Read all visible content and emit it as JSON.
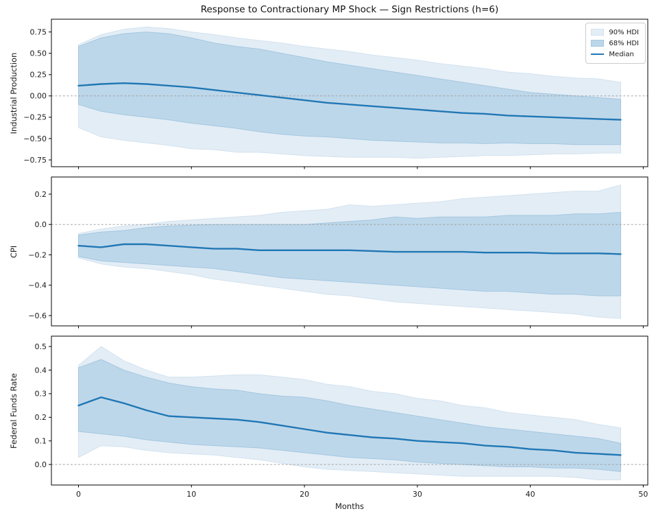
{
  "figure": {
    "title": "Response to Contractionary MP Shock — Sign Restrictions (h=6)",
    "xlabel": "Months",
    "xlim": [
      -2.4,
      50.4
    ],
    "xtick_values": [
      0,
      10,
      20,
      30,
      40,
      50
    ],
    "xtick_labels": [
      "0",
      "10",
      "20",
      "30",
      "40",
      "50"
    ],
    "legend": {
      "position": "top-right",
      "items": [
        {
          "label": "90% HDI",
          "type": "patch",
          "color": "#e3edf6"
        },
        {
          "label": "68% HDI",
          "type": "patch",
          "color": "#bdd7ea"
        },
        {
          "label": "Median",
          "type": "line",
          "color": "#2077b4"
        }
      ]
    },
    "colors": {
      "band90": "#e3edf6",
      "band90_edge": "#d2e2ef",
      "band68": "#bdd7ea",
      "band68_edge": "#a3c7df",
      "median": "#2077b4",
      "zero_line": "#9a9a9a",
      "spine": "#000000",
      "tick_text": "#1a1a1a"
    }
  },
  "chart_data": [
    {
      "type": "area",
      "panel": "Industrial Production",
      "ylabel": "Industrial Production",
      "ylim": [
        -0.83,
        0.9
      ],
      "ytick_values": [
        0.75,
        0.5,
        0.25,
        0.0,
        -0.25,
        -0.5,
        -0.75
      ],
      "ytick_labels": [
        "0.75",
        "0.50",
        "0.25",
        "0.00",
        "−0.25",
        "−0.50",
        "−0.75"
      ],
      "grid": false,
      "zero_line": true,
      "x": [
        0,
        2,
        4,
        6,
        8,
        10,
        12,
        14,
        16,
        18,
        20,
        22,
        24,
        26,
        28,
        30,
        32,
        34,
        36,
        38,
        40,
        42,
        44,
        46,
        48
      ],
      "series": [
        {
          "name": "Median",
          "values": [
            0.12,
            0.14,
            0.15,
            0.14,
            0.12,
            0.1,
            0.07,
            0.04,
            0.01,
            -0.02,
            -0.05,
            -0.08,
            -0.1,
            -0.12,
            -0.14,
            -0.16,
            -0.18,
            -0.2,
            -0.21,
            -0.23,
            -0.24,
            -0.25,
            -0.26,
            -0.27,
            -0.28
          ]
        },
        {
          "name": "68% HDI",
          "lower": [
            -0.1,
            -0.18,
            -0.22,
            -0.25,
            -0.28,
            -0.32,
            -0.35,
            -0.38,
            -0.42,
            -0.45,
            -0.47,
            -0.48,
            -0.5,
            -0.52,
            -0.53,
            -0.54,
            -0.55,
            -0.55,
            -0.56,
            -0.55,
            -0.56,
            -0.56,
            -0.57,
            -0.57,
            -0.57
          ],
          "upper": [
            0.58,
            0.68,
            0.73,
            0.75,
            0.73,
            0.68,
            0.62,
            0.58,
            0.55,
            0.5,
            0.45,
            0.4,
            0.36,
            0.32,
            0.28,
            0.24,
            0.2,
            0.16,
            0.12,
            0.08,
            0.04,
            0.02,
            0.0,
            -0.02,
            -0.04
          ]
        },
        {
          "name": "90% HDI",
          "lower": [
            -0.37,
            -0.48,
            -0.52,
            -0.55,
            -0.58,
            -0.62,
            -0.63,
            -0.66,
            -0.66,
            -0.68,
            -0.7,
            -0.71,
            -0.72,
            -0.72,
            -0.72,
            -0.73,
            -0.72,
            -0.71,
            -0.7,
            -0.7,
            -0.69,
            -0.68,
            -0.68,
            -0.67,
            -0.67
          ],
          "upper": [
            0.6,
            0.72,
            0.78,
            0.81,
            0.79,
            0.75,
            0.72,
            0.68,
            0.65,
            0.62,
            0.58,
            0.55,
            0.52,
            0.48,
            0.45,
            0.42,
            0.38,
            0.35,
            0.32,
            0.28,
            0.26,
            0.23,
            0.21,
            0.2,
            0.16
          ]
        }
      ]
    },
    {
      "type": "area",
      "panel": "CPI",
      "ylabel": "CPI",
      "ylim": [
        -0.668,
        0.313
      ],
      "ytick_values": [
        0.2,
        0.0,
        -0.2,
        -0.4,
        -0.6
      ],
      "ytick_labels": [
        "0.2",
        "0.0",
        "−0.2",
        "−0.4",
        "−0.6"
      ],
      "grid": false,
      "zero_line": true,
      "x": [
        0,
        2,
        4,
        6,
        8,
        10,
        12,
        14,
        16,
        18,
        20,
        22,
        24,
        26,
        28,
        30,
        32,
        34,
        36,
        38,
        40,
        42,
        44,
        46,
        48
      ],
      "series": [
        {
          "name": "Median",
          "values": [
            -0.14,
            -0.15,
            -0.13,
            -0.13,
            -0.14,
            -0.15,
            -0.16,
            -0.16,
            -0.17,
            -0.17,
            -0.17,
            -0.17,
            -0.17,
            -0.175,
            -0.18,
            -0.18,
            -0.18,
            -0.18,
            -0.185,
            -0.185,
            -0.185,
            -0.19,
            -0.19,
            -0.19,
            -0.195
          ]
        },
        {
          "name": "68% HDI",
          "lower": [
            -0.21,
            -0.24,
            -0.25,
            -0.26,
            -0.27,
            -0.28,
            -0.29,
            -0.31,
            -0.33,
            -0.35,
            -0.36,
            -0.37,
            -0.38,
            -0.39,
            -0.4,
            -0.41,
            -0.42,
            -0.43,
            -0.44,
            -0.44,
            -0.45,
            -0.46,
            -0.46,
            -0.47,
            -0.47
          ],
          "upper": [
            -0.07,
            -0.05,
            -0.04,
            -0.02,
            -0.01,
            -0.005,
            0.0,
            0.0,
            0.0,
            0.0,
            0.0,
            0.01,
            0.02,
            0.03,
            0.05,
            0.04,
            0.05,
            0.05,
            0.05,
            0.06,
            0.06,
            0.06,
            0.07,
            0.07,
            0.08
          ]
        },
        {
          "name": "90% HDI",
          "lower": [
            -0.22,
            -0.26,
            -0.28,
            -0.29,
            -0.31,
            -0.33,
            -0.36,
            -0.38,
            -0.4,
            -0.42,
            -0.44,
            -0.46,
            -0.47,
            -0.49,
            -0.51,
            -0.52,
            -0.53,
            -0.54,
            -0.55,
            -0.56,
            -0.57,
            -0.58,
            -0.59,
            -0.61,
            -0.62
          ],
          "upper": [
            -0.06,
            -0.03,
            -0.01,
            0.0,
            0.02,
            0.03,
            0.04,
            0.05,
            0.06,
            0.08,
            0.09,
            0.1,
            0.13,
            0.12,
            0.13,
            0.14,
            0.15,
            0.17,
            0.18,
            0.19,
            0.2,
            0.21,
            0.22,
            0.22,
            0.26
          ]
        }
      ]
    },
    {
      "type": "area",
      "panel": "Federal Funds Rate",
      "ylabel": "Federal Funds Rate",
      "ylim": [
        -0.087,
        0.544
      ],
      "ytick_values": [
        0.5,
        0.4,
        0.3,
        0.2,
        0.1,
        0.0
      ],
      "ytick_labels": [
        "0.5",
        "0.4",
        "0.3",
        "0.2",
        "0.1",
        "0.0"
      ],
      "grid": false,
      "zero_line": true,
      "x": [
        0,
        2,
        4,
        6,
        8,
        10,
        12,
        14,
        16,
        18,
        20,
        22,
        24,
        26,
        28,
        30,
        32,
        34,
        36,
        38,
        40,
        42,
        44,
        46,
        48
      ],
      "series": [
        {
          "name": "Median",
          "values": [
            0.25,
            0.285,
            0.26,
            0.23,
            0.205,
            0.2,
            0.195,
            0.19,
            0.18,
            0.165,
            0.15,
            0.135,
            0.125,
            0.115,
            0.11,
            0.1,
            0.095,
            0.09,
            0.08,
            0.075,
            0.065,
            0.06,
            0.05,
            0.045,
            0.04
          ]
        },
        {
          "name": "68% HDI",
          "lower": [
            0.14,
            0.13,
            0.12,
            0.105,
            0.095,
            0.085,
            0.08,
            0.075,
            0.07,
            0.06,
            0.05,
            0.04,
            0.03,
            0.025,
            0.02,
            0.01,
            0.005,
            0.0,
            -0.005,
            -0.01,
            -0.01,
            -0.015,
            -0.015,
            -0.02,
            -0.03
          ],
          "upper": [
            0.41,
            0.445,
            0.4,
            0.37,
            0.345,
            0.33,
            0.32,
            0.315,
            0.3,
            0.29,
            0.285,
            0.27,
            0.25,
            0.235,
            0.22,
            0.205,
            0.19,
            0.175,
            0.16,
            0.15,
            0.14,
            0.13,
            0.12,
            0.11,
            0.09
          ]
        },
        {
          "name": "90% HDI",
          "lower": [
            0.03,
            0.08,
            0.075,
            0.06,
            0.05,
            0.045,
            0.04,
            0.03,
            0.02,
            0.005,
            -0.01,
            -0.02,
            -0.025,
            -0.03,
            -0.035,
            -0.04,
            -0.045,
            -0.05,
            -0.05,
            -0.05,
            -0.05,
            -0.05,
            -0.055,
            -0.065,
            -0.065
          ],
          "upper": [
            0.42,
            0.5,
            0.44,
            0.4,
            0.37,
            0.37,
            0.375,
            0.38,
            0.38,
            0.37,
            0.36,
            0.34,
            0.33,
            0.31,
            0.3,
            0.28,
            0.27,
            0.25,
            0.24,
            0.22,
            0.21,
            0.2,
            0.19,
            0.17,
            0.155
          ]
        }
      ]
    }
  ]
}
